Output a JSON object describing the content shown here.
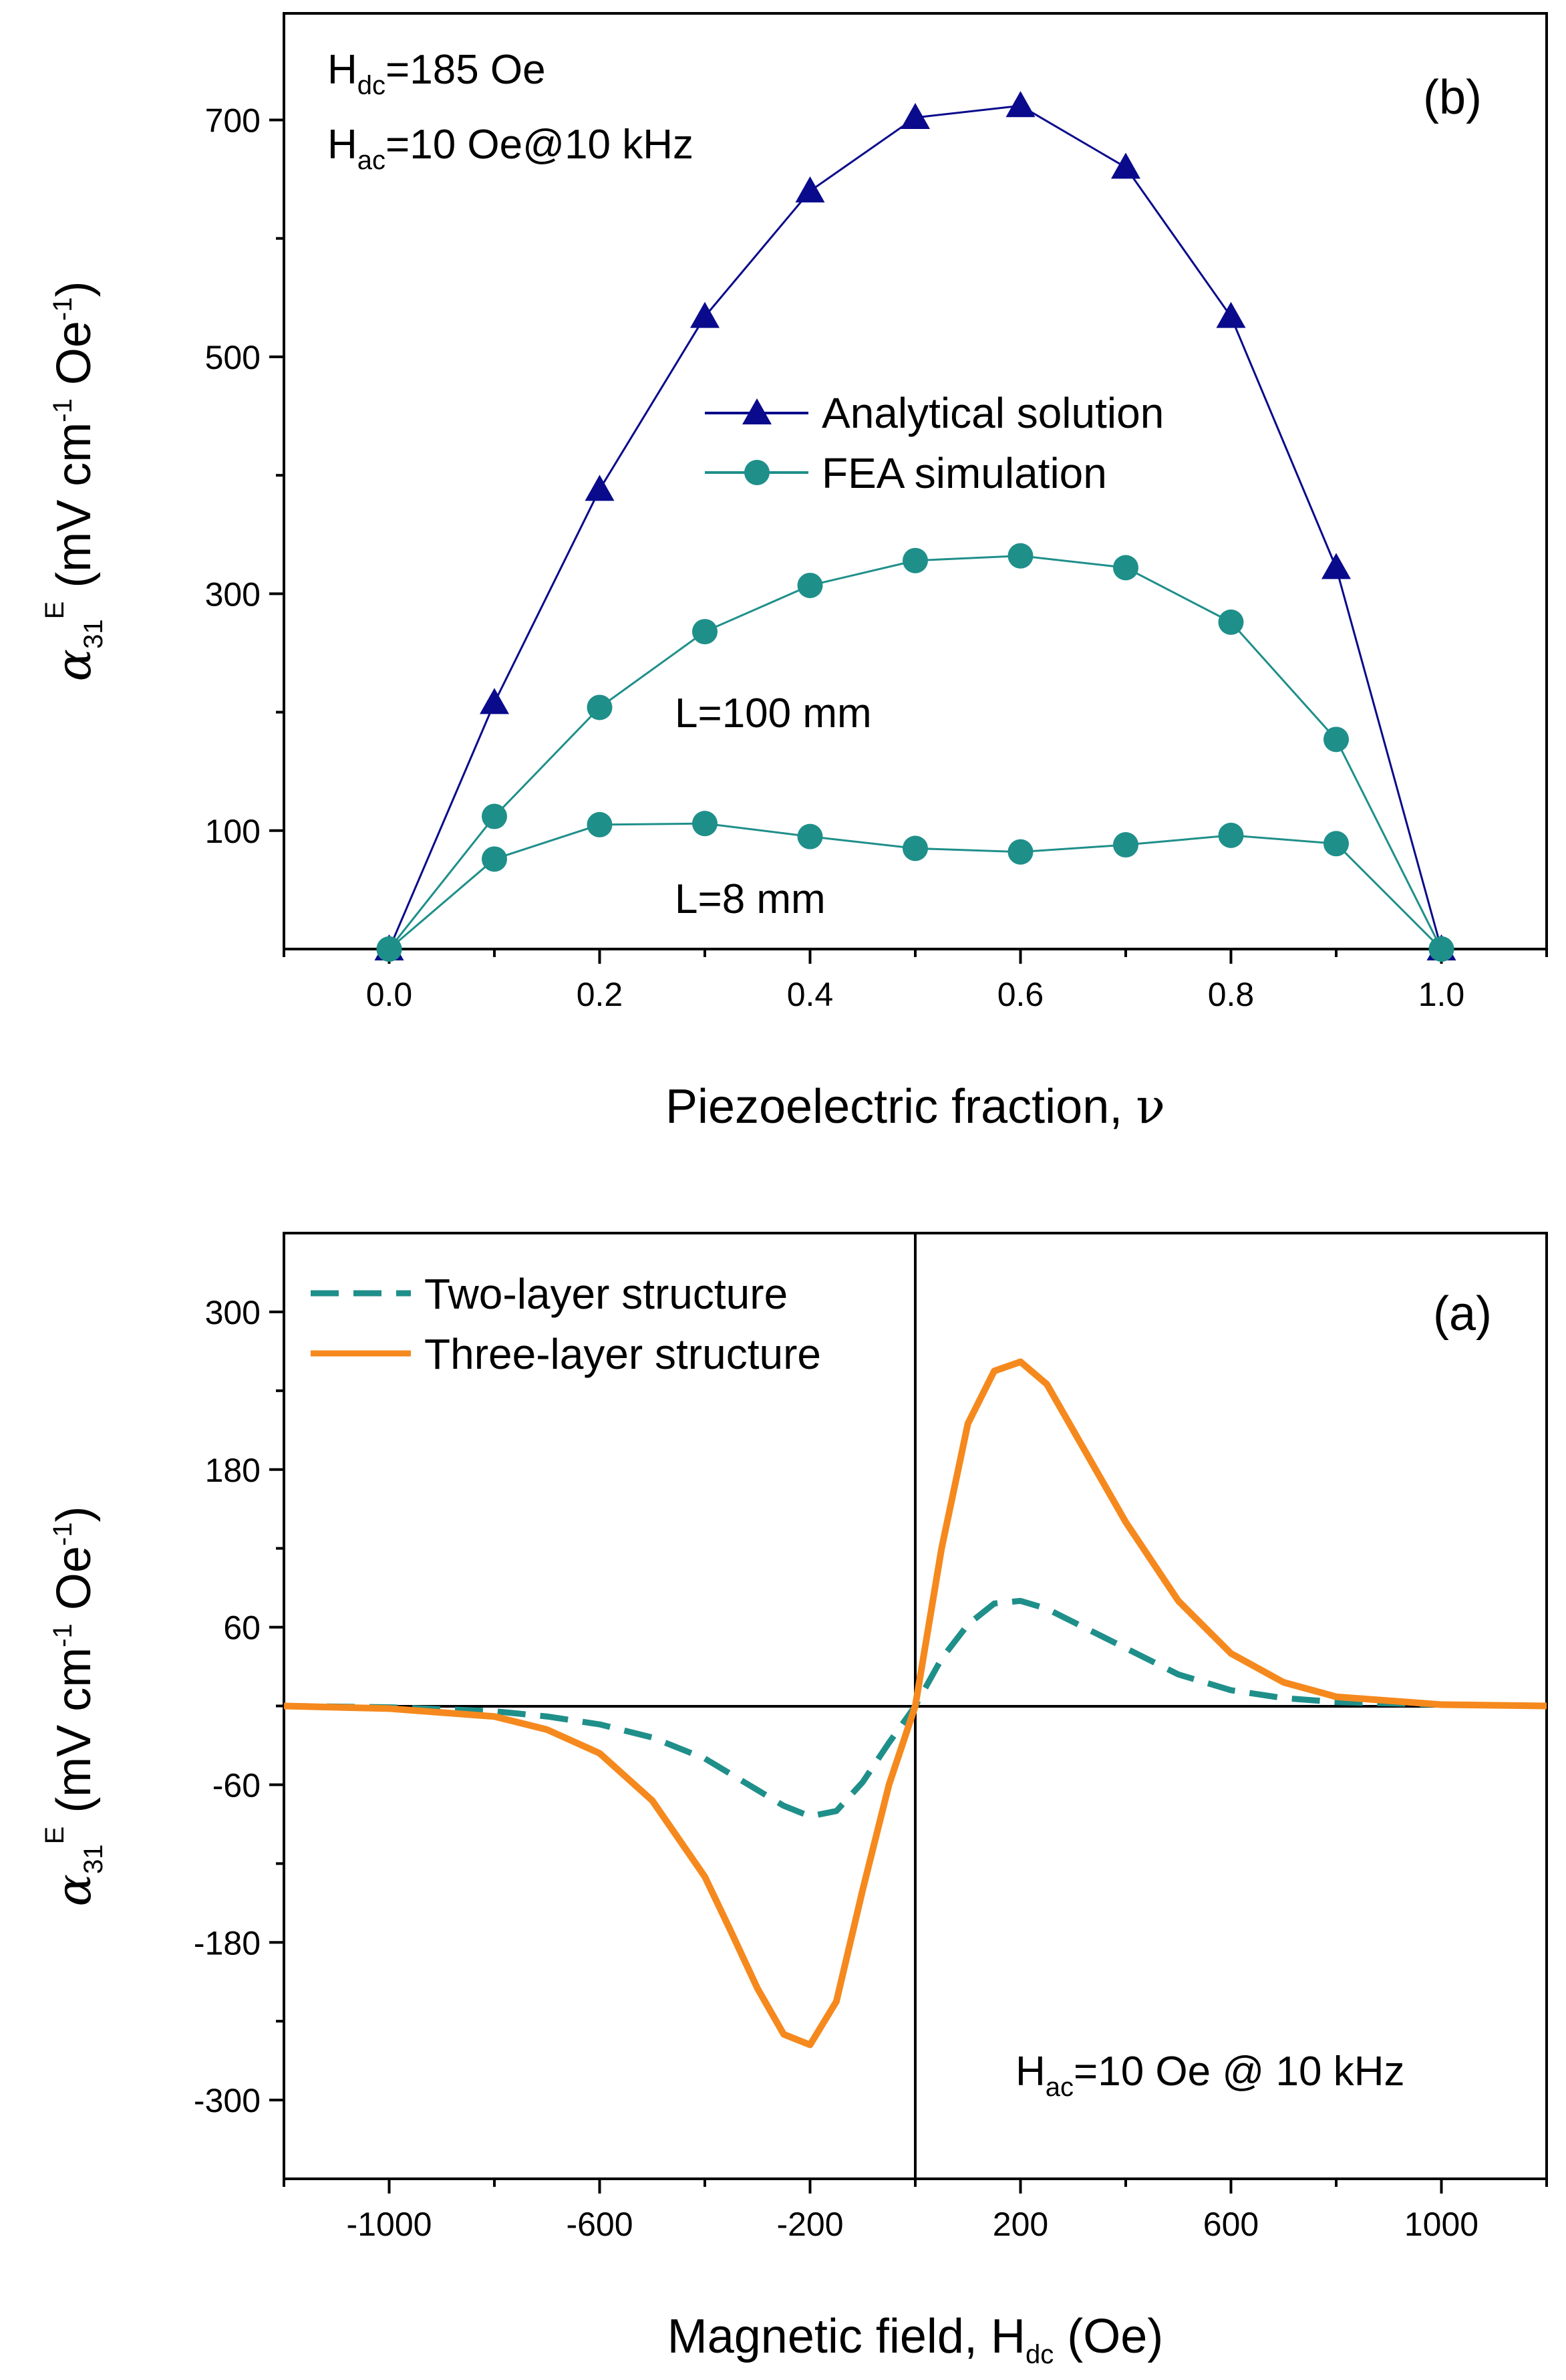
{
  "chart_data": [
    {
      "id": "b",
      "type": "line",
      "panel_label": "(b)",
      "xlabel": "Piezoelectric fraction, ",
      "xlabel_symbol": "ν",
      "ylabel": {
        "alpha": "α",
        "alpha_sub": "31",
        "alpha_sup": "E",
        "units_open": " (mV cm",
        "units_sup": "-1",
        "units_close": " Oe",
        "units_sup2": "-1",
        "units_end": ")"
      },
      "xlim": [
        -0.1,
        1.1
      ],
      "ylim": [
        0,
        790
      ],
      "xticks": [
        0.0,
        0.2,
        0.4,
        0.6,
        0.8,
        1.0
      ],
      "xtick_labels": [
        "0.0",
        "0.2",
        "0.4",
        "0.6",
        "0.8",
        "1.0"
      ],
      "yticks": [
        100,
        300,
        500,
        700
      ],
      "ytick_labels": [
        "100",
        "300",
        "500",
        "700"
      ],
      "y_minor_ticks": [
        200,
        400,
        600
      ],
      "x": [
        0.0,
        0.1,
        0.2,
        0.3,
        0.4,
        0.5,
        0.6,
        0.7,
        0.8,
        0.9,
        1.0
      ],
      "series": [
        {
          "name": "Analytical solution",
          "marker": "triangle",
          "color": "#0a0a8c",
          "values": [
            0,
            208,
            388,
            534,
            640,
            702,
            712,
            660,
            534,
            322,
            0
          ]
        },
        {
          "name": "FEA simulation",
          "marker": "circle",
          "color": "#1f8f8a",
          "label": "L=100 mm",
          "values": [
            0,
            112,
            204,
            268,
            307,
            328,
            332,
            322,
            276,
            177,
            0
          ]
        },
        {
          "name": "FEA simulation (L=8 mm)",
          "marker": "circle",
          "color": "#1f8f8a",
          "label": "L=8 mm",
          "values": [
            0,
            76,
            105,
            106,
            95,
            85,
            82,
            88,
            96,
            89,
            0
          ]
        }
      ],
      "legend": [
        "Analytical solution",
        "FEA simulation"
      ],
      "annotations": {
        "hdc_main": "H",
        "hdc_sub": "dc",
        "hdc_value": "=185 Oe",
        "hac_main": "H",
        "hac_sub": "ac",
        "hac_value": "=10 Oe@10 kHz",
        "l100": "L=100 mm",
        "l8": "L=8 mm"
      }
    },
    {
      "id": "a",
      "type": "line",
      "panel_label": "(a)",
      "xlabel": "Magnetic field, H",
      "xlabel_sub": "dc",
      "xlabel_end": " (Oe)",
      "ylabel": {
        "alpha": "α",
        "alpha_sub": "31",
        "alpha_sup": "E",
        "units_open": " (mV cm",
        "units_sup": "-1",
        "units_close": " Oe",
        "units_sup2": "-1",
        "units_end": ")"
      },
      "xlim": [
        -1200,
        1200
      ],
      "ylim": [
        -360,
        360
      ],
      "xticks": [
        -1000,
        -600,
        -200,
        200,
        600,
        1000
      ],
      "xtick_labels": [
        "-1000",
        "-600",
        "-200",
        "200",
        "600",
        "1000"
      ],
      "x_minor_ticks": [
        -1200,
        -800,
        -400,
        0,
        400,
        800,
        1200
      ],
      "yticks": [
        -300,
        -180,
        -60,
        60,
        180,
        300
      ],
      "ytick_labels": [
        "-300",
        "-180",
        "-60",
        "60",
        "180",
        "300"
      ],
      "y_minor_ticks": [
        -240,
        -120,
        0,
        120,
        240
      ],
      "series": [
        {
          "name": "Two-layer structure",
          "style": "dashed",
          "color": "#1f8f8a",
          "x": [
            -1200,
            -1000,
            -800,
            -700,
            -600,
            -500,
            -400,
            -350,
            -300,
            -250,
            -200,
            -150,
            -100,
            -50,
            0,
            50,
            100,
            150,
            200,
            250,
            300,
            400,
            500,
            600,
            700,
            800,
            1000,
            1200
          ],
          "y": [
            0,
            -1,
            -4,
            -8,
            -14,
            -24,
            -40,
            -52,
            -64,
            -76,
            -84,
            -80,
            -58,
            -28,
            0,
            36,
            62,
            78,
            80,
            74,
            64,
            44,
            24,
            12,
            6,
            3,
            1,
            0
          ]
        },
        {
          "name": "Three-layer structure",
          "style": "solid",
          "color": "#f5891e",
          "x": [
            -1200,
            -1000,
            -800,
            -700,
            -600,
            -500,
            -400,
            -350,
            -300,
            -250,
            -200,
            -150,
            -100,
            -50,
            0,
            50,
            100,
            150,
            200,
            250,
            300,
            400,
            500,
            600,
            700,
            800,
            1000,
            1200
          ],
          "y": [
            0,
            -2,
            -8,
            -18,
            -36,
            -72,
            -130,
            -172,
            -215,
            -250,
            -258,
            -225,
            -140,
            -60,
            0,
            120,
            215,
            255,
            262,
            245,
            210,
            140,
            80,
            40,
            18,
            7,
            1,
            0
          ]
        }
      ],
      "legend": [
        "Two-layer structure",
        "Three-layer structure"
      ],
      "annotations": {
        "hac_main": "H",
        "hac_sub": "ac",
        "hac_value": "=10 Oe @ 10 kHz"
      }
    }
  ]
}
